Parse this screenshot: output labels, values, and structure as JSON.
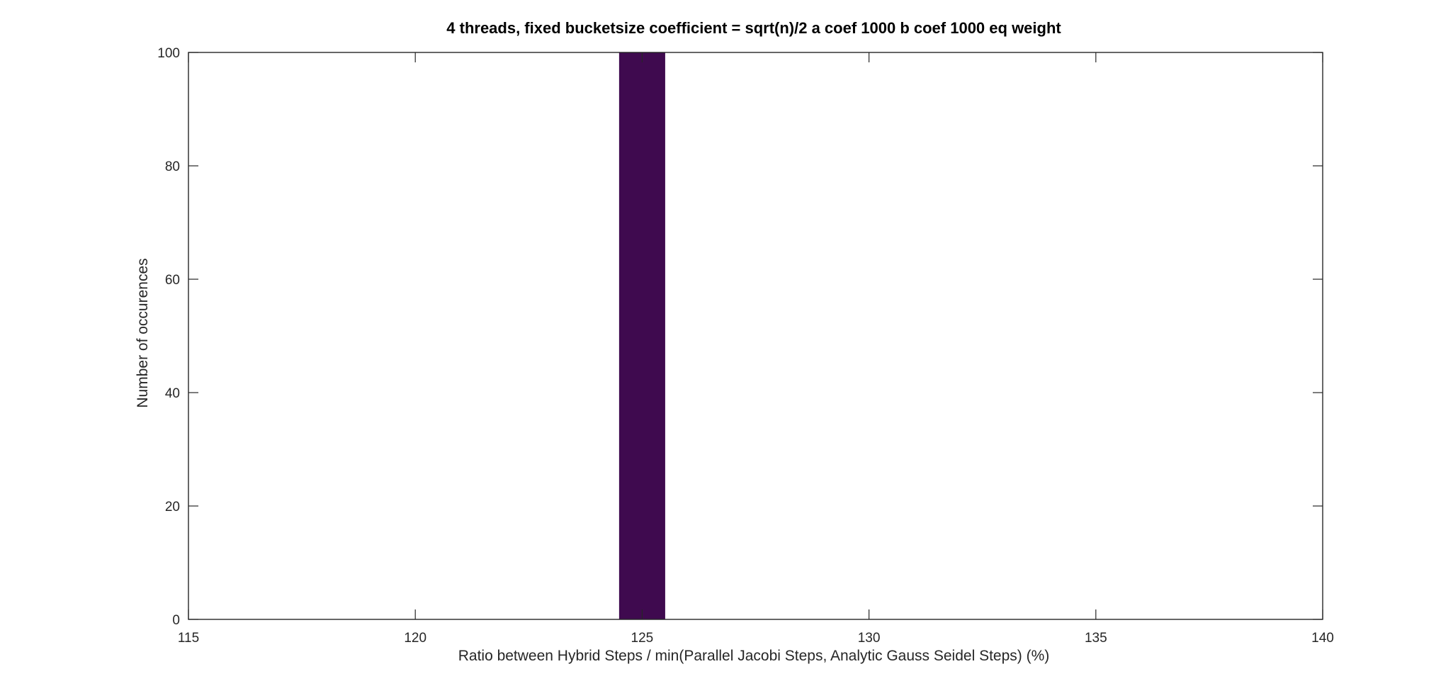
{
  "chart_data": {
    "type": "bar",
    "title": "4 threads, fixed bucketsize coefficient = sqrt(n)/2 a coef 1000 b coef 1000 eq weight",
    "xlabel": "Ratio between Hybrid Steps / min(Parallel Jacobi Steps, Analytic Gauss Seidel Steps) (%)",
    "ylabel": "Number of occurences",
    "xlim": [
      115,
      140
    ],
    "ylim": [
      0,
      100
    ],
    "xticks": [
      "115",
      "120",
      "125",
      "130",
      "135",
      "140"
    ],
    "yticks": [
      "0",
      "20",
      "40",
      "60",
      "80",
      "100"
    ],
    "bins": [
      {
        "x_start": 124.5,
        "x_end": 125.5,
        "count": 100
      }
    ],
    "bar_color": "#3F0A4F",
    "grid": false,
    "legend": "none"
  }
}
